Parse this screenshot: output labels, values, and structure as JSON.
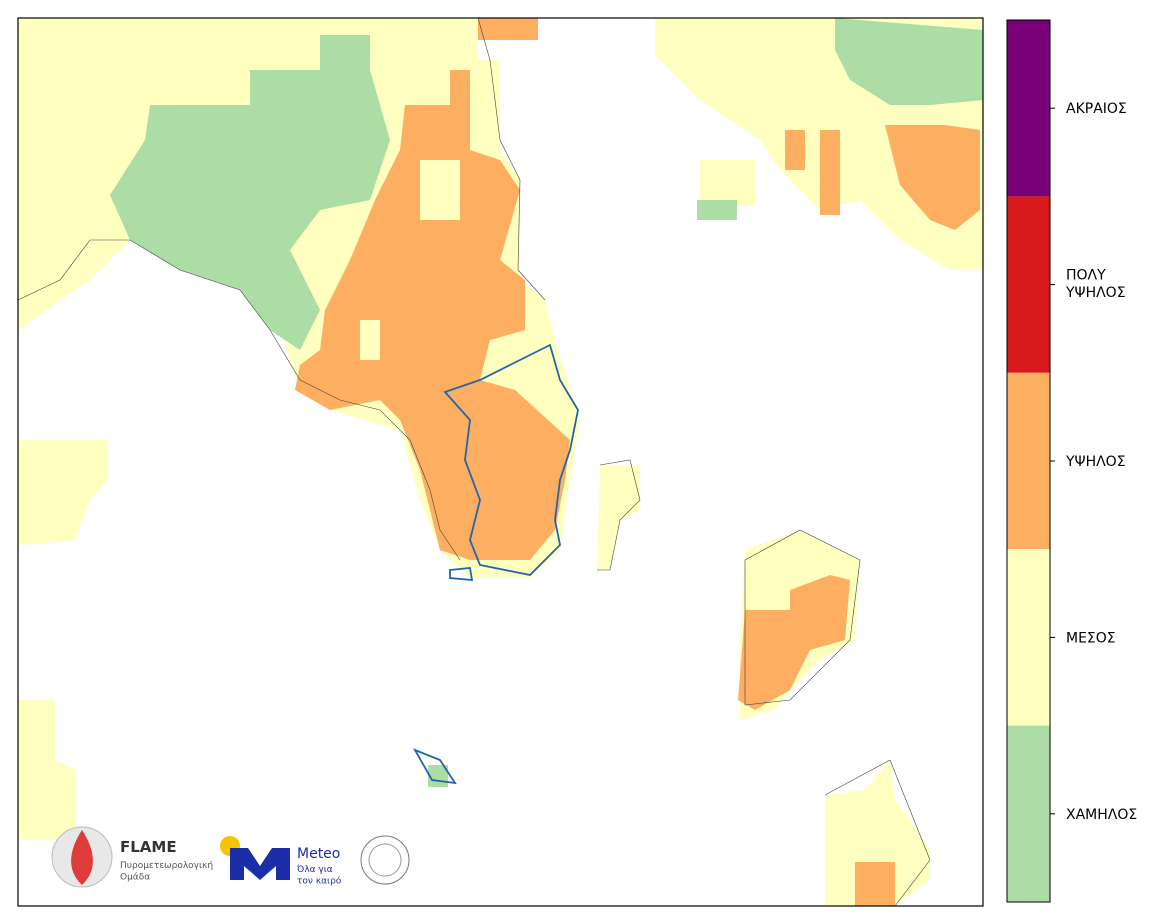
{
  "legend": {
    "levels": [
      {
        "label": "ΑΚΡΑΙΟΣ",
        "color": "#780078"
      },
      {
        "label": "ΠΟΛΥ\nΥΨΗΛΟΣ",
        "color": "#d7191c"
      },
      {
        "label": "ΥΨΗΛΟΣ",
        "color": "#fdae61"
      },
      {
        "label": "ΜΕΣΟΣ",
        "color": "#ffffc0"
      },
      {
        "label": "ΧΑΜΗΛΟΣ",
        "color": "#abdda4"
      }
    ]
  },
  "logos": {
    "flame_title": "FLAME",
    "flame_subtitle": "Πυρομετεωρολογική\nΟμάδα",
    "meteo_title": "Meteo",
    "meteo_subtitle": "Όλα για\nτον καιρό"
  }
}
